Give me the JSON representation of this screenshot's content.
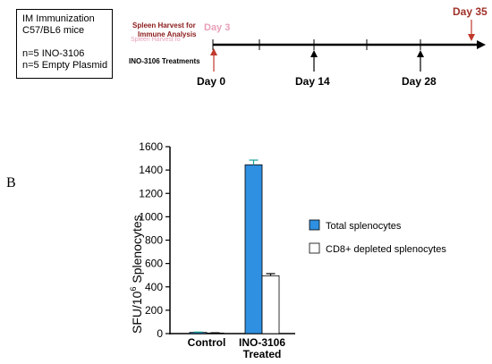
{
  "immunization_box": {
    "line1": "IM Immunization",
    "line2": "C57/BL6 mice",
    "line3": "n=5 INO-3106",
    "line4": "n=5 Empty Plasmid"
  },
  "timeline": {
    "spleen_harvest_label_1": "Spleen Harvest for",
    "spleen_harvest_label_2": "Immune Analysis",
    "ghost_label_1": "Day 3",
    "ghost_label_2": "Spleen Harvest fo",
    "treatments_label": "INO-3106 Treatments",
    "days": [
      {
        "label": "Day 0",
        "value": 0
      },
      {
        "label": "Day 14",
        "value": 14
      },
      {
        "label": "Day 28",
        "value": 28
      },
      {
        "label": "Day 35",
        "value": 35
      }
    ],
    "colors": {
      "harvest_text": "#8b1a1a",
      "harvest_arrow": "#c0392b",
      "day35": "#a0322a",
      "ghost": "#e8a0b8"
    }
  },
  "panel_label": "B",
  "chart_data": {
    "type": "bar",
    "categories": [
      "Control",
      "INO-3106 Treated"
    ],
    "category_lines": [
      [
        "Control"
      ],
      [
        "INO-3106",
        "Treated"
      ]
    ],
    "series": [
      {
        "name": "Total splenocytes",
        "color": "#2f8fe0",
        "values": [
          10,
          1445
        ],
        "errors": [
          3,
          40
        ]
      },
      {
        "name": "CD8+ depleted splenocytes",
        "color": "#ffffff",
        "values": [
          5,
          495
        ],
        "errors": [
          2,
          18
        ]
      }
    ],
    "ylabel_main": "SFU/10",
    "ylabel_sup": "6",
    "ylabel_tail": " Splenocytes",
    "ylim": [
      0,
      1600
    ],
    "yticks": [
      0,
      200,
      400,
      600,
      800,
      1000,
      1200,
      1400,
      1600
    ],
    "legend_placement": "right",
    "grid": false
  }
}
